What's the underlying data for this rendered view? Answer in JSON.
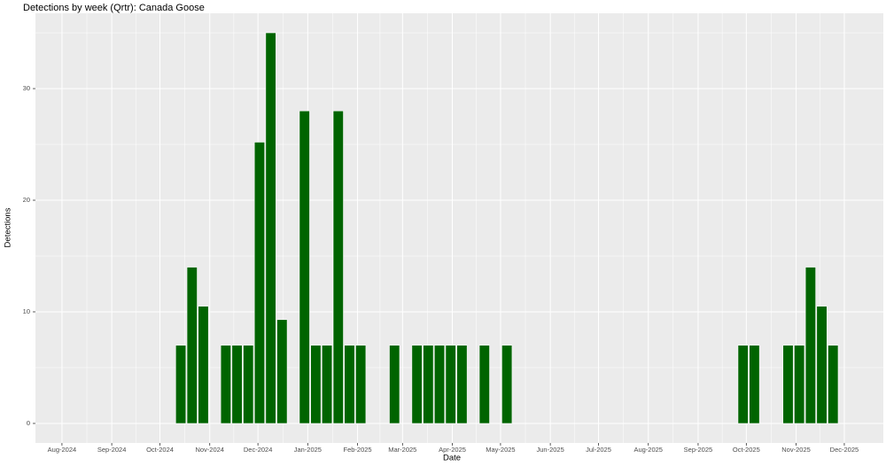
{
  "chart_data": {
    "type": "bar",
    "title": "Detections by week (Qrtr): Canada Goose",
    "x_label": "Date",
    "y_label": "Detections",
    "color": "#006400",
    "grid": true,
    "x": [
      74,
      81,
      88,
      102,
      109,
      116,
      123,
      130,
      137,
      151,
      158,
      165,
      172,
      179,
      186,
      207,
      221,
      228,
      235,
      242,
      249,
      263,
      277,
      424,
      431,
      452,
      459,
      466,
      473,
      480
    ],
    "values": [
      7,
      14,
      10.5,
      7,
      7,
      7,
      25.2,
      35,
      9.3,
      28,
      7,
      7,
      28,
      7,
      7,
      7,
      7,
      7,
      7,
      7,
      7,
      7,
      7,
      7,
      7,
      7,
      7,
      14,
      10.5,
      7
    ],
    "xlim": [
      -16.5,
      511.3
    ],
    "xticks": [
      {
        "value": 0,
        "label": "Aug-2024"
      },
      {
        "value": 31,
        "label": "Sep-2024"
      },
      {
        "value": 61,
        "label": "Oct-2024"
      },
      {
        "value": 92,
        "label": "Nov-2024"
      },
      {
        "value": 122,
        "label": "Dec-2024"
      },
      {
        "value": 153,
        "label": "Jan-2025"
      },
      {
        "value": 184,
        "label": "Feb-2025"
      },
      {
        "value": 212,
        "label": "Mar-2025"
      },
      {
        "value": 243,
        "label": "Apr-2025"
      },
      {
        "value": 273,
        "label": "May-2025"
      },
      {
        "value": 304,
        "label": "Jun-2025"
      },
      {
        "value": 334,
        "label": "Jul-2025"
      },
      {
        "value": 365,
        "label": "Aug-2025"
      },
      {
        "value": 396,
        "label": "Sep-2025"
      },
      {
        "value": 426,
        "label": "Oct-2025"
      },
      {
        "value": 457,
        "label": "Nov-2025"
      },
      {
        "value": 487,
        "label": "Dec-2025"
      }
    ],
    "ylim": [
      -1.75,
      36.75
    ],
    "yticks": [
      0,
      10,
      20,
      30
    ]
  }
}
